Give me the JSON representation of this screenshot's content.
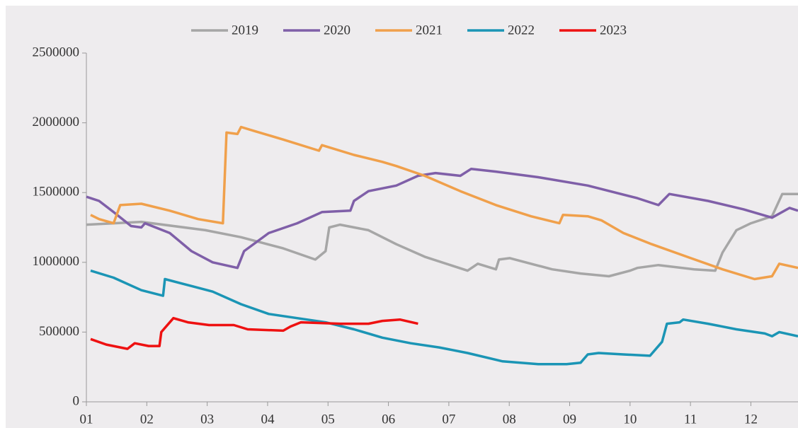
{
  "chart_data": {
    "type": "line",
    "xlim": [
      1,
      12.78
    ],
    "xticks": [
      {
        "value": 1,
        "label": "01"
      },
      {
        "value": 2,
        "label": "02"
      },
      {
        "value": 3,
        "label": "03"
      },
      {
        "value": 4,
        "label": "04"
      },
      {
        "value": 5,
        "label": "05"
      },
      {
        "value": 6,
        "label": "06"
      },
      {
        "value": 7,
        "label": "07"
      },
      {
        "value": 8,
        "label": "08"
      },
      {
        "value": 9,
        "label": "09"
      },
      {
        "value": 10,
        "label": "10"
      },
      {
        "value": 11,
        "label": "11"
      },
      {
        "value": 12,
        "label": "12"
      }
    ],
    "ylim": [
      0,
      2500000
    ],
    "yticks": [
      0,
      500000,
      1000000,
      1500000,
      2000000,
      2500000
    ],
    "legend": "top",
    "series": [
      {
        "name": "2019",
        "color": "#a6a6a6",
        "x": [
          1,
          1.91,
          2.97,
          3.56,
          4.26,
          4.79,
          4.96,
          5.02,
          5.2,
          5.67,
          6.13,
          6.6,
          7.31,
          7.48,
          7.78,
          7.83,
          8.01,
          8.71,
          9.18,
          9.65,
          10.0,
          10.12,
          10.47,
          11.06,
          11.41,
          11.53,
          11.76,
          12.0,
          12.35,
          12.52,
          12.78
        ],
        "values": [
          1270000,
          1290000,
          1230000,
          1180000,
          1100000,
          1020000,
          1080000,
          1250000,
          1270000,
          1230000,
          1130000,
          1040000,
          940000,
          990000,
          950000,
          1020000,
          1030000,
          950000,
          920000,
          900000,
          940000,
          960000,
          980000,
          950000,
          940000,
          1070000,
          1230000,
          1280000,
          1330000,
          1490000,
          1490000
        ]
      },
      {
        "name": "2020",
        "color": "#7f5fa8",
        "x": [
          1,
          1.21,
          1.45,
          1.74,
          1.91,
          1.97,
          2.38,
          2.74,
          3.09,
          3.5,
          3.61,
          4.02,
          4.49,
          4.9,
          5.37,
          5.43,
          5.67,
          6.13,
          6.49,
          6.78,
          7.19,
          7.37,
          7.78,
          8.48,
          9.3,
          10.12,
          10.47,
          10.65,
          11.29,
          11.88,
          12.35,
          12.64,
          12.78
        ],
        "values": [
          1470000,
          1440000,
          1360000,
          1260000,
          1250000,
          1280000,
          1210000,
          1080000,
          1000000,
          960000,
          1080000,
          1210000,
          1280000,
          1360000,
          1370000,
          1440000,
          1510000,
          1550000,
          1620000,
          1640000,
          1620000,
          1670000,
          1650000,
          1610000,
          1550000,
          1460000,
          1410000,
          1490000,
          1440000,
          1380000,
          1320000,
          1390000,
          1370000
        ]
      },
      {
        "name": "2021",
        "color": "#f0a04b",
        "x": [
          1.07,
          1.21,
          1.45,
          1.56,
          1.91,
          2.38,
          2.85,
          3.26,
          3.32,
          3.5,
          3.56,
          3.79,
          4.26,
          4.85,
          4.9,
          5.43,
          5.9,
          6.13,
          6.6,
          7.19,
          7.78,
          8.36,
          8.83,
          8.89,
          9.3,
          9.53,
          9.89,
          10.36,
          10.94,
          11.53,
          12.06,
          12.35,
          12.47,
          12.78
        ],
        "values": [
          1340000,
          1310000,
          1280000,
          1410000,
          1420000,
          1370000,
          1310000,
          1280000,
          1930000,
          1920000,
          1970000,
          1940000,
          1880000,
          1800000,
          1840000,
          1770000,
          1720000,
          1690000,
          1620000,
          1510000,
          1410000,
          1330000,
          1280000,
          1340000,
          1330000,
          1300000,
          1210000,
          1130000,
          1040000,
          950000,
          880000,
          900000,
          990000,
          960000
        ]
      },
      {
        "name": "2022",
        "color": "#1b95b5",
        "x": [
          1.07,
          1.45,
          1.91,
          2.27,
          2.3,
          2.74,
          3.09,
          3.56,
          4.02,
          4.49,
          4.96,
          5.43,
          5.9,
          6.37,
          6.84,
          7.31,
          7.89,
          8.48,
          8.95,
          9.18,
          9.3,
          9.48,
          9.89,
          10.33,
          10.53,
          10.61,
          10.82,
          10.88,
          11.29,
          11.76,
          12.23,
          12.35,
          12.47,
          12.78
        ],
        "values": [
          940000,
          890000,
          800000,
          760000,
          880000,
          830000,
          790000,
          700000,
          630000,
          600000,
          570000,
          520000,
          460000,
          420000,
          390000,
          350000,
          290000,
          270000,
          270000,
          280000,
          340000,
          350000,
          340000,
          330000,
          430000,
          560000,
          570000,
          590000,
          560000,
          520000,
          490000,
          470000,
          500000,
          470000
        ]
      },
      {
        "name": "2023",
        "color": "#ee1111",
        "x": [
          1.07,
          1.33,
          1.68,
          1.8,
          2.03,
          2.21,
          2.24,
          2.44,
          2.68,
          3.03,
          3.44,
          3.67,
          4.26,
          4.38,
          4.55,
          5.2,
          5.67,
          5.9,
          6.19,
          6.49
        ],
        "values": [
          450000,
          410000,
          380000,
          420000,
          400000,
          400000,
          500000,
          600000,
          570000,
          550000,
          550000,
          520000,
          510000,
          540000,
          570000,
          560000,
          560000,
          580000,
          590000,
          560000
        ]
      }
    ]
  }
}
